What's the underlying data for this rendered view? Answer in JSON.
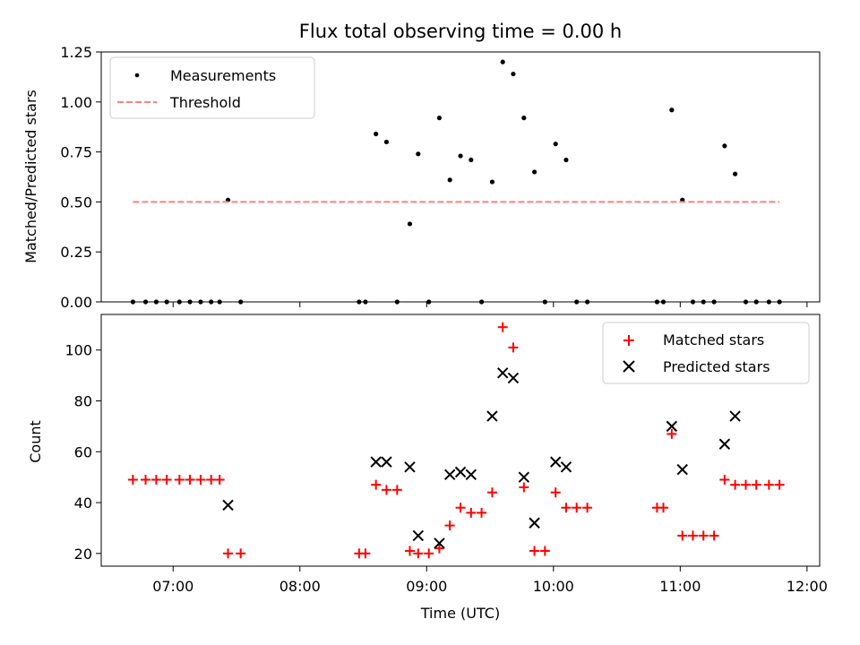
{
  "chart_data": [
    {
      "type": "scatter",
      "title": "Flux total observing time = 0.00 h",
      "xlabel": "",
      "ylabel": "Matched/Predicted stars",
      "xlim": [
        6.433,
        12.1
      ],
      "ylim": [
        0,
        1.25
      ],
      "yticks": [
        "0.00",
        "0.25",
        "0.50",
        "0.75",
        "1.00",
        "1.25"
      ],
      "legend_position": "upper-left",
      "series": [
        {
          "name": "Measurements",
          "marker": "dot",
          "color": "#000000",
          "points": [
            [
              6.683,
              0
            ],
            [
              6.783,
              0
            ],
            [
              6.867,
              0
            ],
            [
              6.95,
              0
            ],
            [
              7.05,
              0
            ],
            [
              7.133,
              0
            ],
            [
              7.217,
              0
            ],
            [
              7.3,
              0
            ],
            [
              7.367,
              0
            ],
            [
              7.433,
              0.51
            ],
            [
              7.533,
              0
            ],
            [
              8.467,
              0
            ],
            [
              8.517,
              0
            ],
            [
              8.6,
              0.84
            ],
            [
              8.683,
              0.8
            ],
            [
              8.767,
              0
            ],
            [
              8.867,
              0.39
            ],
            [
              8.933,
              0.74
            ],
            [
              9.017,
              0
            ],
            [
              9.1,
              0.92
            ],
            [
              9.183,
              0.61
            ],
            [
              9.267,
              0.73
            ],
            [
              9.35,
              0.71
            ],
            [
              9.433,
              0
            ],
            [
              9.517,
              0.6
            ],
            [
              9.6,
              1.2
            ],
            [
              9.683,
              1.14
            ],
            [
              9.767,
              0.92
            ],
            [
              9.85,
              0.65
            ],
            [
              9.933,
              0
            ],
            [
              10.017,
              0.79
            ],
            [
              10.1,
              0.71
            ],
            [
              10.183,
              0
            ],
            [
              10.267,
              0
            ],
            [
              10.817,
              0
            ],
            [
              10.867,
              0
            ],
            [
              10.933,
              0.96
            ],
            [
              11.017,
              0.51
            ],
            [
              11.1,
              0
            ],
            [
              11.183,
              0
            ],
            [
              11.267,
              0
            ],
            [
              11.35,
              0.78
            ],
            [
              11.433,
              0.64
            ],
            [
              11.517,
              0
            ],
            [
              11.6,
              0
            ],
            [
              11.7,
              0
            ],
            [
              11.783,
              0
            ]
          ]
        },
        {
          "name": "Threshold",
          "style": "dashed",
          "color": "#ff7f7f",
          "points": [
            [
              6.683,
              0.5
            ],
            [
              11.783,
              0.5
            ]
          ]
        }
      ]
    },
    {
      "type": "scatter",
      "title": "",
      "xlabel": "Time (UTC)",
      "ylabel": "Count",
      "xlim": [
        6.433,
        12.1
      ],
      "ylim": [
        15,
        114
      ],
      "xticks": [
        {
          "value": 7,
          "label": "07:00"
        },
        {
          "value": 8,
          "label": "08:00"
        },
        {
          "value": 9,
          "label": "09:00"
        },
        {
          "value": 10,
          "label": "10:00"
        },
        {
          "value": 11,
          "label": "11:00"
        },
        {
          "value": 12,
          "label": "12:00"
        }
      ],
      "yticks": [
        "20",
        "40",
        "60",
        "80",
        "100"
      ],
      "legend_position": "upper-right",
      "series": [
        {
          "name": "Matched stars",
          "marker": "plus",
          "color": "#ff0000",
          "points": [
            [
              6.683,
              49
            ],
            [
              6.783,
              49
            ],
            [
              6.867,
              49
            ],
            [
              6.95,
              49
            ],
            [
              7.05,
              49
            ],
            [
              7.133,
              49
            ],
            [
              7.217,
              49
            ],
            [
              7.3,
              49
            ],
            [
              7.367,
              49
            ],
            [
              7.433,
              20
            ],
            [
              7.533,
              20
            ],
            [
              8.467,
              20
            ],
            [
              8.517,
              20
            ],
            [
              8.6,
              47
            ],
            [
              8.683,
              45
            ],
            [
              8.767,
              45
            ],
            [
              8.867,
              21
            ],
            [
              8.933,
              20
            ],
            [
              9.017,
              20
            ],
            [
              9.1,
              22
            ],
            [
              9.183,
              31
            ],
            [
              9.267,
              38
            ],
            [
              9.35,
              36
            ],
            [
              9.433,
              36
            ],
            [
              9.517,
              44
            ],
            [
              9.6,
              109
            ],
            [
              9.683,
              101
            ],
            [
              9.767,
              46
            ],
            [
              9.85,
              21
            ],
            [
              9.933,
              21
            ],
            [
              10.017,
              44
            ],
            [
              10.1,
              38
            ],
            [
              10.183,
              38
            ],
            [
              10.267,
              38
            ],
            [
              10.817,
              38
            ],
            [
              10.867,
              38
            ],
            [
              10.933,
              67
            ],
            [
              11.017,
              27
            ],
            [
              11.1,
              27
            ],
            [
              11.183,
              27
            ],
            [
              11.267,
              27
            ],
            [
              11.35,
              49
            ],
            [
              11.433,
              47
            ],
            [
              11.517,
              47
            ],
            [
              11.6,
              47
            ],
            [
              11.7,
              47
            ],
            [
              11.783,
              47
            ]
          ]
        },
        {
          "name": "Predicted stars",
          "marker": "x",
          "color": "#000000",
          "points": [
            [
              7.433,
              39
            ],
            [
              8.6,
              56
            ],
            [
              8.683,
              56
            ],
            [
              8.867,
              54
            ],
            [
              8.933,
              27
            ],
            [
              9.1,
              24
            ],
            [
              9.183,
              51
            ],
            [
              9.267,
              52
            ],
            [
              9.35,
              51
            ],
            [
              9.517,
              74
            ],
            [
              9.6,
              91
            ],
            [
              9.683,
              89
            ],
            [
              9.767,
              50
            ],
            [
              9.85,
              32
            ],
            [
              10.017,
              56
            ],
            [
              10.1,
              54
            ],
            [
              10.933,
              70
            ],
            [
              11.017,
              53
            ],
            [
              11.35,
              63
            ],
            [
              11.433,
              74
            ]
          ]
        }
      ]
    }
  ]
}
